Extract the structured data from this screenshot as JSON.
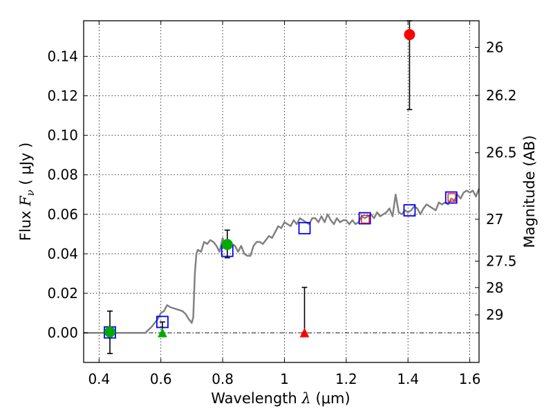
{
  "chart_data": {
    "type": "scatter",
    "title": "",
    "xlim": [
      0.35,
      1.63
    ],
    "ylim": [
      -0.015,
      0.158
    ],
    "grid": true,
    "x_ticks": [
      0.4,
      0.6,
      0.8,
      1.0,
      1.2,
      1.4,
      1.6
    ],
    "x_tick_labels": [
      "0.4",
      "0.6",
      "0.8",
      "1",
      "1.2",
      "1.4",
      "1.6"
    ],
    "y_ticks": [
      0.0,
      0.02,
      0.04,
      0.06,
      0.08,
      0.1,
      0.12,
      0.14
    ],
    "y_tick_labels": [
      "0.00",
      "0.02",
      "0.04",
      "0.06",
      "0.08",
      "0.10",
      "0.12",
      "0.14"
    ],
    "xlabel": {
      "prefix": "Wavelength  ",
      "symbol": "λ",
      "suffix": " (μm)"
    },
    "ylabel": {
      "prefix": "Flux  ",
      "symbol": "F",
      "subscript": "ν",
      "suffix": "  ( μJy )"
    },
    "right_axis": {
      "label": "Magnitude (AB)",
      "ticks": [
        {
          "label": "26",
          "flux": 0.1445
        },
        {
          "label": "26.2",
          "flux": 0.1202
        },
        {
          "label": "26.5",
          "flux": 0.0912
        },
        {
          "label": "27",
          "flux": 0.0575
        },
        {
          "label": "27.5",
          "flux": 0.0363
        },
        {
          "label": "28",
          "flux": 0.0229
        },
        {
          "label": "29",
          "flux": 0.0091
        }
      ]
    },
    "series": [
      {
        "kind": "line",
        "color": "#808080",
        "x": [
          0.35,
          0.55,
          0.56,
          0.57,
          0.58,
          0.59,
          0.6,
          0.61,
          0.62,
          0.63,
          0.64,
          0.65,
          0.66,
          0.67,
          0.68,
          0.69,
          0.7,
          0.705,
          0.71,
          0.715,
          0.72,
          0.73,
          0.74,
          0.75,
          0.76,
          0.77,
          0.78,
          0.79,
          0.8,
          0.81,
          0.82,
          0.83,
          0.84,
          0.85,
          0.86,
          0.87,
          0.88,
          0.89,
          0.9,
          0.91,
          0.92,
          0.93,
          0.94,
          0.95,
          0.96,
          0.97,
          0.98,
          0.99,
          1.0,
          1.01,
          1.02,
          1.03,
          1.04,
          1.05,
          1.06,
          1.07,
          1.08,
          1.09,
          1.1,
          1.11,
          1.12,
          1.13,
          1.14,
          1.15,
          1.16,
          1.17,
          1.18,
          1.19,
          1.2,
          1.21,
          1.22,
          1.23,
          1.24,
          1.25,
          1.26,
          1.27,
          1.28,
          1.29,
          1.3,
          1.31,
          1.32,
          1.33,
          1.34,
          1.35,
          1.36,
          1.37,
          1.38,
          1.39,
          1.4,
          1.41,
          1.42,
          1.43,
          1.44,
          1.45,
          1.46,
          1.47,
          1.48,
          1.49,
          1.5,
          1.51,
          1.52,
          1.53,
          1.54,
          1.55,
          1.56,
          1.57,
          1.58,
          1.59,
          1.6,
          1.61,
          1.62,
          1.63
        ],
        "y": [
          0.0,
          0.0,
          0.0015,
          0.003,
          0.005,
          0.007,
          0.01,
          0.011,
          0.014,
          0.013,
          0.0125,
          0.012,
          0.0115,
          0.011,
          0.0095,
          0.007,
          0.005,
          0.008,
          0.03,
          0.04,
          0.042,
          0.041,
          0.046,
          0.045,
          0.047,
          0.046,
          0.044,
          0.041,
          0.048,
          0.043,
          0.047,
          0.045,
          0.044,
          0.041,
          0.044,
          0.04,
          0.039,
          0.039,
          0.044,
          0.046,
          0.046,
          0.045,
          0.047,
          0.049,
          0.048,
          0.051,
          0.054,
          0.053,
          0.056,
          0.055,
          0.054,
          0.057,
          0.055,
          0.058,
          0.057,
          0.056,
          0.055,
          0.058,
          0.058,
          0.056,
          0.059,
          0.056,
          0.06,
          0.057,
          0.055,
          0.058,
          0.056,
          0.057,
          0.057,
          0.055,
          0.057,
          0.055,
          0.056,
          0.059,
          0.058,
          0.059,
          0.06,
          0.058,
          0.061,
          0.059,
          0.06,
          0.061,
          0.063,
          0.059,
          0.07,
          0.061,
          0.06,
          0.062,
          0.061,
          0.062,
          0.064,
          0.063,
          0.06,
          0.063,
          0.065,
          0.064,
          0.063,
          0.062,
          0.066,
          0.065,
          0.066,
          0.065,
          0.068,
          0.067,
          0.07,
          0.068,
          0.071,
          0.072,
          0.071,
          0.072,
          0.069,
          0.073
        ]
      },
      {
        "kind": "model-boxes",
        "color": "#0000ff",
        "x": [
          0.435,
          0.605,
          0.815,
          1.065,
          1.26,
          1.405,
          1.54
        ],
        "y": [
          0.0002,
          0.0055,
          0.0415,
          0.053,
          0.058,
          0.062,
          0.0685
        ]
      },
      {
        "kind": "small-boxes",
        "color": "#ff0000",
        "x": [
          1.262,
          1.542
        ],
        "y": [
          0.0575,
          0.0685
        ]
      },
      {
        "kind": "detections",
        "color": "#00aa00",
        "x": [
          0.435,
          0.815
        ],
        "y": [
          0.0004,
          0.0447
        ],
        "err_low": [
          -0.0105,
          0.038
        ],
        "err_high": [
          0.011,
          0.052
        ]
      },
      {
        "kind": "detections",
        "color": "#ff0000",
        "x": [
          1.405
        ],
        "y": [
          0.151
        ],
        "err_low": [
          0.113
        ],
        "err_high": [
          0.158
        ]
      },
      {
        "kind": "upper-limits",
        "color": "#00aa00",
        "x": [
          0.605
        ],
        "y": [
          0.0
        ],
        "err_low": [
          -0.001
        ],
        "err_high": [
          0.0055
        ]
      },
      {
        "kind": "upper-limits",
        "color": "#ff0000",
        "x": [
          1.065
        ],
        "y": [
          0.0
        ],
        "err_low": [
          0.0
        ],
        "err_high": [
          0.023
        ]
      }
    ]
  }
}
